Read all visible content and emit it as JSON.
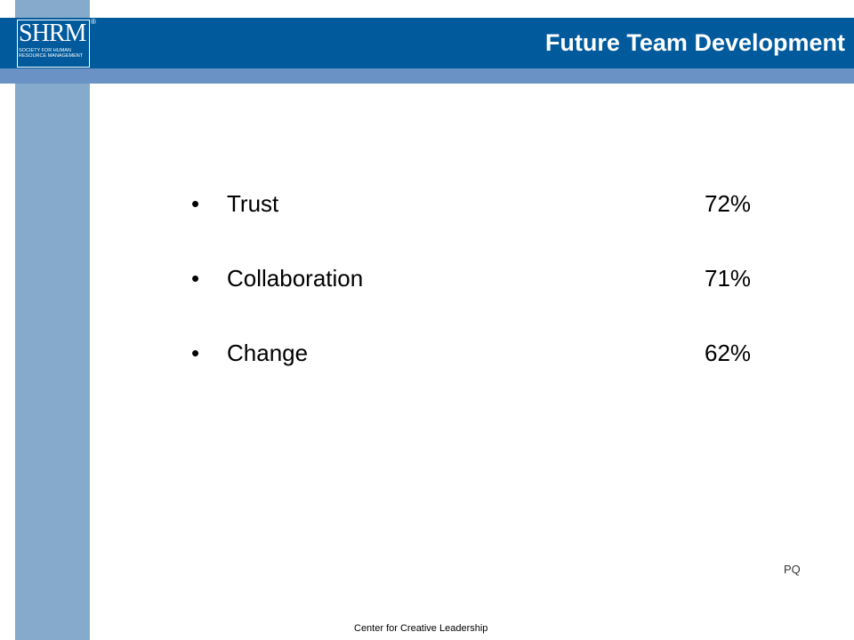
{
  "logo": {
    "mark": "SHRM",
    "registered": "®",
    "tagline": "Society for Human Resource Management"
  },
  "slide": {
    "title": "Future Team Development",
    "items": [
      {
        "bullet": "•",
        "label": "Trust",
        "value": "72%"
      },
      {
        "bullet": "•",
        "label": "Collaboration",
        "value": "71%"
      },
      {
        "bullet": "•",
        "label": "Change",
        "value": "62%"
      }
    ],
    "corner_note": "PQ",
    "footer": "Center for Creative Leadership"
  },
  "colors": {
    "header": "#005a9c",
    "sub_bar": "#6a92c4",
    "side_stripe": "#85aacb"
  }
}
